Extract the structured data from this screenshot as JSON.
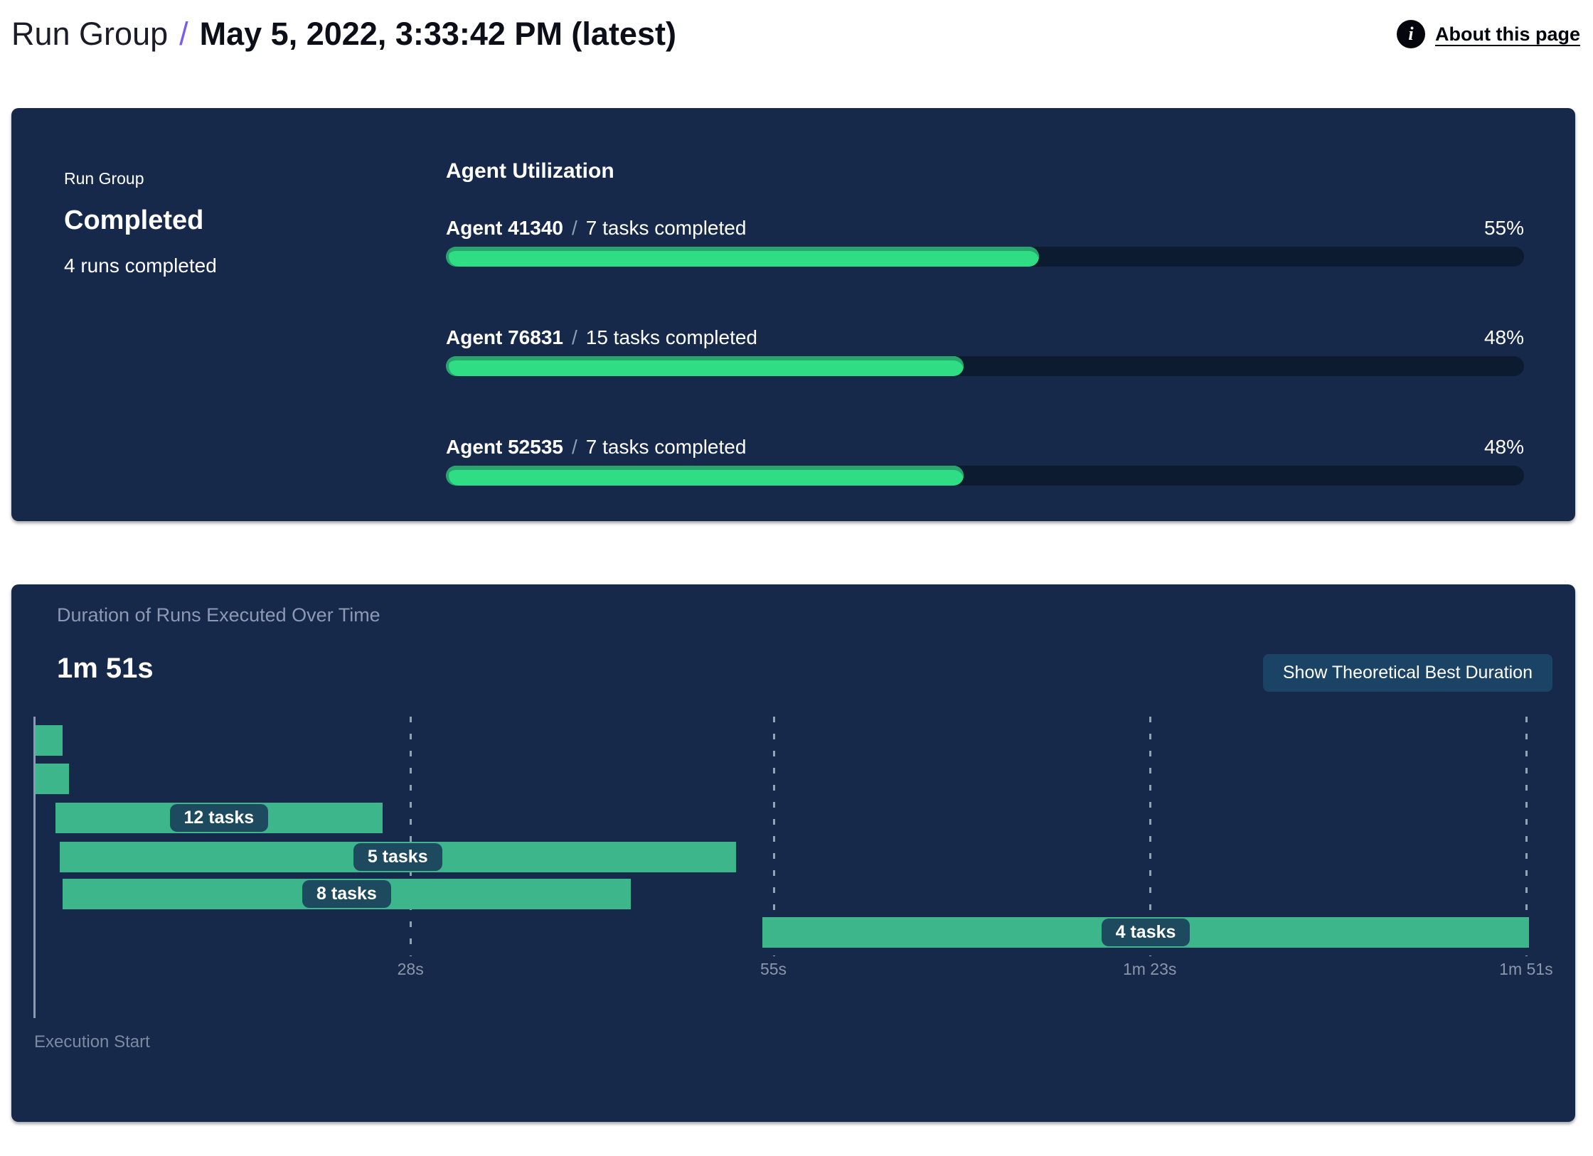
{
  "header": {
    "breadcrumb_root": "Run Group",
    "breadcrumb_separator": "/",
    "title": "May 5, 2022, 3:33:42 PM (latest)",
    "info_icon": "i",
    "about_link": "About this page"
  },
  "status_panel": {
    "label": "Run Group",
    "status": "Completed",
    "subtitle": "4 runs completed"
  },
  "agent_utilization": {
    "title": "Agent Utilization",
    "separator": "/",
    "agents": [
      {
        "name": "Agent 41340",
        "tasks": "7 tasks completed",
        "percent": 55,
        "percent_label": "55%"
      },
      {
        "name": "Agent 76831",
        "tasks": "15 tasks completed",
        "percent": 48,
        "percent_label": "48%"
      },
      {
        "name": "Agent 52535",
        "tasks": "7 tasks completed",
        "percent": 48,
        "percent_label": "48%"
      }
    ]
  },
  "duration_chart": {
    "title": "Duration of Runs Executed Over Time",
    "total_duration": "1m 51s",
    "button_label": "Show Theoretical Best Duration",
    "axis_label": "Execution Start",
    "ticks": [
      {
        "label": "28s",
        "seconds": 28
      },
      {
        "label": "55s",
        "seconds": 55
      },
      {
        "label": "1m 23s",
        "seconds": 83
      },
      {
        "label": "1m 51s",
        "seconds": 111
      }
    ],
    "runs": [
      {
        "label": "",
        "start_s": 0.1,
        "end_s": 2.1
      },
      {
        "label": "",
        "start_s": 0.1,
        "end_s": 2.6
      },
      {
        "label": "12 tasks",
        "start_s": 1.6,
        "end_s": 25.9
      },
      {
        "label": "5 tasks",
        "start_s": 1.9,
        "end_s": 52.2
      },
      {
        "label": "8 tasks",
        "start_s": 2.1,
        "end_s": 44.4
      },
      {
        "label": "4 tasks",
        "start_s": 54.2,
        "end_s": 111.2
      }
    ]
  },
  "colors": {
    "panel_background": "#17294b",
    "progress_track": "#0d1b31",
    "progress_fill": "#2edd84",
    "gantt_bar": "#3eb68c",
    "badge_background": "#1e4a5f",
    "button_background": "#1b4365",
    "breadcrumb_slash": "#7b5bf2",
    "muted_text": "#8a9ab3"
  }
}
